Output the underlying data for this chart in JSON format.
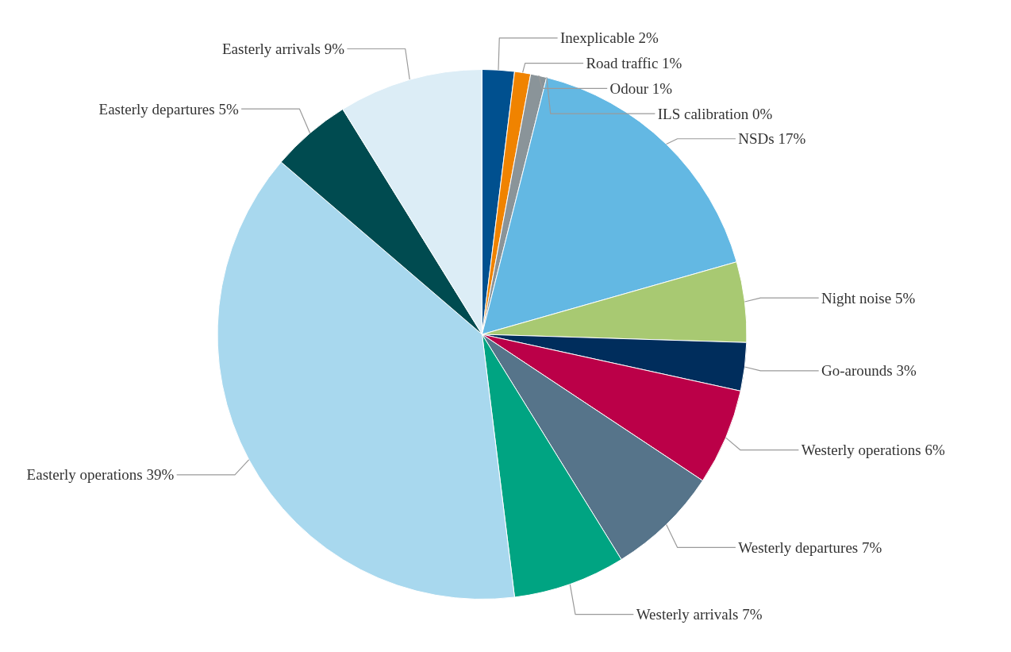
{
  "chart_data": {
    "type": "pie",
    "categories": [
      "Inexplicable",
      "Road traffic",
      "Odour",
      "ILS calibration",
      "NSDs",
      "Night noise",
      "Go-arounds",
      "Westerly operations",
      "Westerly departures",
      "Westerly arrivals",
      "Easterly operations",
      "Easterly departures",
      "Easterly arrivals"
    ],
    "values": [
      2,
      1,
      1,
      0,
      17,
      5,
      3,
      6,
      7,
      7,
      39,
      5,
      9
    ],
    "value_labels": [
      "2%",
      "1%",
      "1%",
      "0%",
      "17%",
      "5%",
      "3%",
      "6%",
      "7%",
      "7%",
      "39%",
      "5%",
      "9%"
    ],
    "colors": [
      "#00508f",
      "#f08300",
      "#8a9499",
      "#f5d77a",
      "#63b8e3",
      "#a8c972",
      "#002d5c",
      "#bb0048",
      "#56748a",
      "#00a482",
      "#a8d8ee",
      "#004b50",
      "#dcedf6"
    ]
  }
}
